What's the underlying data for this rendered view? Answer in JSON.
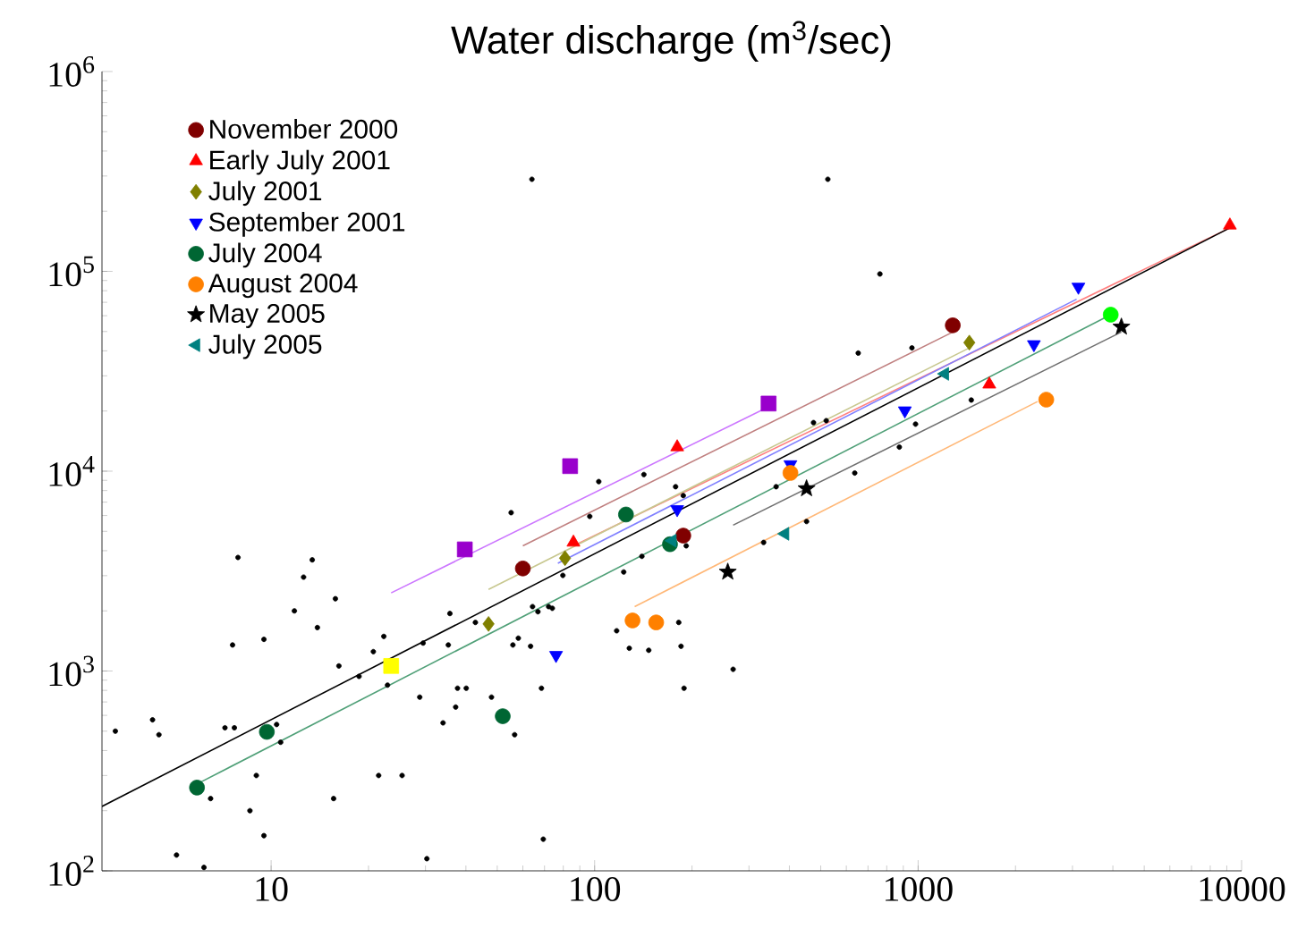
{
  "chart_data": {
    "type": "scatter",
    "title": "Water discharge (m$^{3}$/sec)",
    "log": "xy",
    "xlim": [
      3,
      10000
    ],
    "ylim": [
      100,
      1000000
    ],
    "xticks": [
      10,
      100,
      1000,
      10000
    ],
    "yticks": [
      {
        "value": 100,
        "label": "10$^{2}$"
      },
      {
        "value": 1000,
        "label": "10$^{3}$"
      },
      {
        "value": 10000,
        "label": "10$^{4}$"
      },
      {
        "value": 100000,
        "label": "10$^{5}$"
      },
      {
        "value": 1000000,
        "label": "10$^{6}$"
      }
    ],
    "legend": "top left",
    "series": [
      {
        "type": "line",
        "color": "#c08080",
        "x": [
          60,
          1280
        ],
        "values": [
          4230,
          49700
        ]
      },
      {
        "type": "line",
        "color": "#ff8080",
        "x": [
          86,
          9200
        ],
        "values": [
          4230,
          165000
        ]
      },
      {
        "type": "line",
        "color": "#c8c890",
        "x": [
          47,
          1440
        ],
        "values": [
          2560,
          41400
        ]
      },
      {
        "type": "line",
        "color": "#8080ff",
        "x": [
          77,
          3090
        ],
        "values": [
          3460,
          72600
        ]
      },
      {
        "type": "line",
        "color": "#50a078",
        "x": [
          5.9,
          3940
        ],
        "values": [
          272,
          60700
        ]
      },
      {
        "type": "line",
        "color": "#ffb878",
        "x": [
          133,
          2340
        ],
        "values": [
          2100,
          22300
        ]
      },
      {
        "type": "line",
        "color": "#707070",
        "x": [
          268,
          4250
        ],
        "values": [
          5370,
          49700
        ]
      },
      {
        "type": "line",
        "color": "#cc77ff",
        "x": [
          23.5,
          345
        ],
        "values": [
          2460,
          21000
        ]
      },
      {
        "type": "line",
        "color": "#000000",
        "x": [
          3,
          9200
        ],
        "values": [
          210,
          165000
        ]
      },
      {
        "color": "#000000",
        "marker": "dot",
        "x": [
          3.3,
          4.3,
          4.5,
          5.1,
          6.2,
          6.5,
          7.2,
          7.7,
          7.6,
          7.9,
          8.6,
          9.0,
          9.5,
          9.5,
          10.4,
          10.7,
          11.8,
          12.6,
          13.4,
          13.9,
          15.6,
          15.8,
          16.2,
          18.7,
          20.7,
          21.5,
          22.3,
          22.9,
          25.4,
          28.8,
          29.5,
          35.3,
          35.7,
          34,
          37.2,
          37.7,
          40.1,
          30.3,
          42.8,
          48,
          55.2,
          55.9,
          56.6,
          58.1,
          63.4,
          64.3,
          66.8,
          68.5,
          69.4,
          72.1,
          74,
          79.8,
          96.6,
          103,
          117,
          123,
          128,
          140,
          142,
          147,
          182,
          185,
          189,
          192,
          178,
          188,
          762,
          653,
          957,
          475,
          520,
          982,
          875,
          637,
          1460,
          364,
          452,
          333,
          268,
          64,
          526
        ],
        "values": [
          500,
          570,
          480,
          120,
          104,
          230,
          520,
          520,
          1350,
          3700,
          200,
          300,
          1440,
          150,
          540,
          440,
          2000,
          2950,
          3600,
          1650,
          230,
          2300,
          1060,
          940,
          1250,
          300,
          1490,
          850,
          300,
          740,
          1380,
          1350,
          1940,
          550,
          660,
          820,
          820,
          115,
          1750,
          740,
          6200,
          1350,
          480,
          1460,
          1330,
          2100,
          1980,
          820,
          144,
          2100,
          2060,
          3010,
          5940,
          8870,
          1590,
          3130,
          1300,
          3750,
          9620,
          1270,
          1750,
          1330,
          820,
          4230,
          8360,
          7550,
          97000,
          39000,
          41400,
          17500,
          17900,
          17200,
          13200,
          9790,
          22700,
          8360,
          5600,
          4400,
          1020,
          289000,
          289000
        ]
      },
      {
        "name": "November 2000",
        "color": "#800000",
        "marker": "circle",
        "x": [
          60,
          188,
          1280
        ],
        "values": [
          3260,
          4760,
          53700
        ]
      },
      {
        "name": "Early July 2001",
        "color": "#ff0000",
        "marker": "triangle",
        "x": [
          86,
          180,
          1660,
          9200
        ],
        "values": [
          4400,
          13200,
          27200,
          170000
        ]
      },
      {
        "name": "July 2001",
        "color": "#808000",
        "marker": "diamond",
        "x": [
          47,
          81,
          1440
        ],
        "values": [
          1720,
          3670,
          44000
        ]
      },
      {
        "name": "September 2001",
        "color": "#0000ff",
        "marker": "triangle_down",
        "x": [
          76,
          180,
          403,
          910,
          2280,
          3130
        ],
        "values": [
          1200,
          6440,
          10800,
          20100,
          43100,
          83600
        ]
      },
      {
        "name": "July 2004",
        "color": "#006633",
        "marker": "circle",
        "x": [
          5.9,
          9.7,
          52,
          125,
          171
        ],
        "values": [
          261,
          496,
          594,
          6070,
          4310
        ]
      },
      {
        "name": "August 2004",
        "color": "#ff8000",
        "marker": "circle",
        "x": [
          131,
          155,
          403,
          2490
        ],
        "values": [
          1790,
          1750,
          9800,
          22800
        ]
      },
      {
        "name": "May 2005",
        "color": "#000000",
        "marker": "star",
        "x": [
          258,
          452,
          4250
        ],
        "values": [
          3130,
          8180,
          52700
        ]
      },
      {
        "name": "July 2005",
        "color": "#008080",
        "marker": "triangle_left",
        "x": [
          174,
          388,
          1210
        ],
        "values": [
          4490,
          4860,
          30700
        ]
      },
      {
        "color": "#9900cc",
        "marker": "square",
        "x": [
          39.7,
          84,
          345
        ],
        "values": [
          4060,
          10600,
          21800
        ]
      },
      {
        "color": "#ffff00",
        "marker": "square",
        "x": [
          23.5
        ],
        "values": [
          1060
        ]
      },
      {
        "color": "#00ff00",
        "marker": "circle",
        "x": [
          3940
        ],
        "values": [
          60700
        ]
      }
    ]
  }
}
